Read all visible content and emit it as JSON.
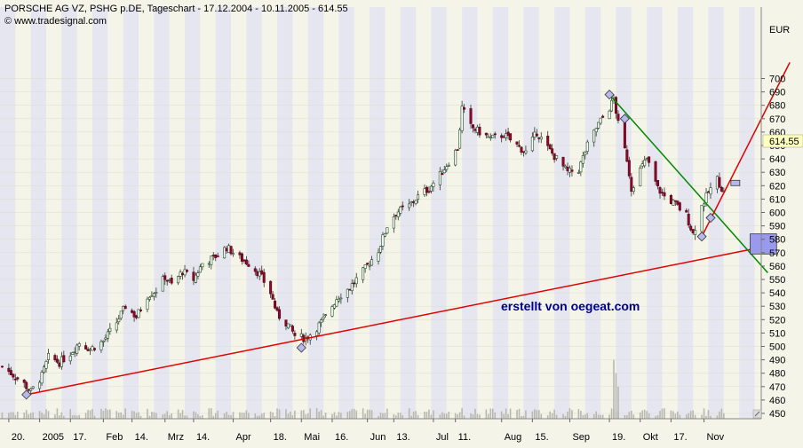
{
  "header": {
    "title": "PORSCHE AG VZ, PSHG p.DE, Tageschart - 17.12.2004 - 10.11.2005 - 614.55",
    "watermark": "© www.tradesignal.com"
  },
  "annotation": "erstellt von oegeat.com",
  "chart_data": {
    "type": "candlestick",
    "title": "PORSCHE AG VZ, PSHG p.DE, Tageschart - 17.12.2004 - 10.11.2005 - 614.55",
    "currency_label": "EUR",
    "last_price": 614.55,
    "last_price_label": "614.55",
    "ylim": [
      445,
      715
    ],
    "y_ticks": [
      450,
      460,
      470,
      480,
      490,
      500,
      510,
      520,
      530,
      540,
      550,
      560,
      570,
      580,
      590,
      600,
      610,
      620,
      630,
      640,
      650,
      660,
      670,
      680,
      690,
      700
    ],
    "x_ticks": [
      {
        "label": "20.",
        "date": "2004-12-20"
      },
      {
        "label": "2005",
        "date": "2005-01-03"
      },
      {
        "label": "17.",
        "date": "2005-01-17"
      },
      {
        "label": "Feb",
        "date": "2005-02-01"
      },
      {
        "label": "14.",
        "date": "2005-02-14"
      },
      {
        "label": "Mrz",
        "date": "2005-03-01"
      },
      {
        "label": "14.",
        "date": "2005-03-14"
      },
      {
        "label": "Apr",
        "date": "2005-04-01"
      },
      {
        "label": "18.",
        "date": "2005-04-18"
      },
      {
        "label": "Mai",
        "date": "2005-05-02"
      },
      {
        "label": "16.",
        "date": "2005-05-16"
      },
      {
        "label": "Jun",
        "date": "2005-06-01"
      },
      {
        "label": "13.",
        "date": "2005-06-13"
      },
      {
        "label": "Jul",
        "date": "2005-07-01"
      },
      {
        "label": "11.",
        "date": "2005-07-11"
      },
      {
        "label": "Aug",
        "date": "2005-08-01"
      },
      {
        "label": "15.",
        "date": "2005-08-15"
      },
      {
        "label": "Sep",
        "date": "2005-09-01"
      },
      {
        "label": "19.",
        "date": "2005-09-19"
      },
      {
        "label": "Okt",
        "date": "2005-10-03"
      },
      {
        "label": "17.",
        "date": "2005-10-17"
      },
      {
        "label": "Nov",
        "date": "2005-11-01"
      }
    ],
    "price_path": [
      [
        "2004-12-17",
        485
      ],
      [
        "2004-12-21",
        480
      ],
      [
        "2004-12-27",
        472
      ],
      [
        "2004-12-30",
        466
      ],
      [
        "2005-01-04",
        478
      ],
      [
        "2005-01-07",
        492
      ],
      [
        "2005-01-12",
        488
      ],
      [
        "2005-01-17",
        495
      ],
      [
        "2005-01-21",
        503
      ],
      [
        "2005-01-26",
        498
      ],
      [
        "2005-02-01",
        504
      ],
      [
        "2005-02-07",
        518
      ],
      [
        "2005-02-11",
        530
      ],
      [
        "2005-02-16",
        522
      ],
      [
        "2005-02-21",
        538
      ],
      [
        "2005-02-25",
        542
      ],
      [
        "2005-03-01",
        552
      ],
      [
        "2005-03-04",
        546
      ],
      [
        "2005-03-09",
        556
      ],
      [
        "2005-03-14",
        550
      ],
      [
        "2005-03-18",
        562
      ],
      [
        "2005-03-23",
        566
      ],
      [
        "2005-03-29",
        574
      ],
      [
        "2005-04-04",
        566
      ],
      [
        "2005-04-08",
        562
      ],
      [
        "2005-04-13",
        554
      ],
      [
        "2005-04-18",
        540
      ],
      [
        "2005-04-21",
        524
      ],
      [
        "2005-04-26",
        516
      ],
      [
        "2005-04-29",
        508
      ],
      [
        "2005-05-04",
        506
      ],
      [
        "2005-05-09",
        514
      ],
      [
        "2005-05-13",
        522
      ],
      [
        "2005-05-18",
        536
      ],
      [
        "2005-05-24",
        544
      ],
      [
        "2005-05-31",
        558
      ],
      [
        "2005-06-06",
        572
      ],
      [
        "2005-06-10",
        590
      ],
      [
        "2005-06-14",
        600
      ],
      [
        "2005-06-20",
        605
      ],
      [
        "2005-06-24",
        612
      ],
      [
        "2005-06-29",
        618
      ],
      [
        "2005-07-04",
        628
      ],
      [
        "2005-07-08",
        638
      ],
      [
        "2005-07-12",
        648
      ],
      [
        "2005-07-14",
        678
      ],
      [
        "2005-07-18",
        664
      ],
      [
        "2005-07-22",
        660
      ],
      [
        "2005-07-27",
        655
      ],
      [
        "2005-08-02",
        658
      ],
      [
        "2005-08-08",
        650
      ],
      [
        "2005-08-12",
        645
      ],
      [
        "2005-08-17",
        660
      ],
      [
        "2005-08-22",
        648
      ],
      [
        "2005-08-26",
        640
      ],
      [
        "2005-08-31",
        630
      ],
      [
        "2005-09-05",
        632
      ],
      [
        "2005-09-09",
        650
      ],
      [
        "2005-09-14",
        666
      ],
      [
        "2005-09-19",
        678
      ],
      [
        "2005-09-21",
        685
      ],
      [
        "2005-09-23",
        666
      ],
      [
        "2005-09-27",
        640
      ],
      [
        "2005-09-29",
        618
      ],
      [
        "2005-10-03",
        632
      ],
      [
        "2005-10-06",
        640
      ],
      [
        "2005-10-11",
        618
      ],
      [
        "2005-10-14",
        612
      ],
      [
        "2005-10-19",
        606
      ],
      [
        "2005-10-24",
        598
      ],
      [
        "2005-10-27",
        584
      ],
      [
        "2005-10-31",
        605
      ],
      [
        "2005-11-03",
        615
      ],
      [
        "2005-11-07",
        625
      ],
      [
        "2005-11-10",
        614.55
      ]
    ],
    "volume_spikes": [
      [
        "2005-09-21",
        490
      ],
      [
        "2005-09-22",
        480
      ],
      [
        "2005-09-23",
        470
      ]
    ],
    "trendlines": [
      {
        "color": "#e00000",
        "from": [
          "2004-12-28",
          464
        ],
        "to": [
          "2005-11-24",
          573
        ],
        "markers": [
          [
            "2004-12-28",
            464
          ],
          [
            "2005-05-02",
            499
          ]
        ]
      },
      {
        "color": "#008800",
        "from": [
          "2005-09-19",
          688
        ],
        "to": [
          "2005-11-30",
          555
        ],
        "markers": [
          [
            "2005-09-19",
            688
          ],
          [
            "2005-09-26",
            670
          ],
          [
            "2005-11-04",
            596
          ]
        ]
      },
      {
        "color": "#e00000",
        "from": [
          "2005-10-31",
          582
        ],
        "to": [
          "2005-12-10",
          712
        ],
        "markers": [
          [
            "2005-10-31",
            582
          ]
        ]
      }
    ],
    "target_box": {
      "from": "2005-11-22",
      "to": "2005-12-04",
      "y0": 569,
      "y1": 584,
      "color": "#9999ee"
    },
    "small_box": {
      "at": "2005-11-10",
      "y": 622
    }
  }
}
